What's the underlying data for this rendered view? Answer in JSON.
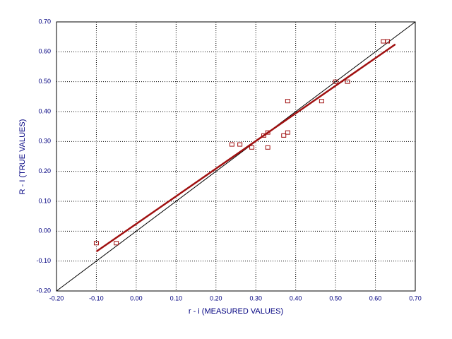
{
  "chart_data": {
    "type": "scatter",
    "xlabel": "r - i (MEASURED VALUES)",
    "ylabel": "R - I (TRUE VALUES)",
    "x": [
      -0.1,
      -0.05,
      0.24,
      0.26,
      0.29,
      0.32,
      0.33,
      0.33,
      0.37,
      0.38,
      0.38,
      0.465,
      0.5,
      0.53,
      0.62,
      0.63
    ],
    "values": [
      -0.04,
      -0.04,
      0.29,
      0.29,
      0.28,
      0.32,
      0.33,
      0.28,
      0.32,
      0.33,
      0.435,
      0.435,
      0.5,
      0.5,
      0.635,
      0.635
    ],
    "color": "#a01010",
    "marker": "square",
    "lines": [
      {
        "color": "#000000",
        "x": [
          -0.2,
          0.7
        ],
        "values": [
          -0.2,
          0.7
        ]
      },
      {
        "color": "#a01010",
        "x": [
          -0.1,
          0.65
        ],
        "values": [
          -0.068,
          0.625
        ]
      }
    ],
    "xlim": [
      -0.2,
      0.7
    ],
    "ylim": [
      -0.2,
      0.7
    ],
    "xticks": [
      {
        "value": -0.2,
        "label": "-0.20"
      },
      {
        "value": -0.1,
        "label": "-0.10"
      },
      {
        "value": 0,
        "label": "0.00"
      },
      {
        "value": 0.1,
        "label": "0.10"
      },
      {
        "value": 0.2,
        "label": "0.20"
      },
      {
        "value": 0.3,
        "label": "0.30"
      },
      {
        "value": 0.4,
        "label": "0.40"
      },
      {
        "value": 0.5,
        "label": "0.50"
      },
      {
        "value": 0.6,
        "label": "0.60"
      },
      {
        "value": 0.7,
        "label": "0.70"
      }
    ],
    "yticks": [
      {
        "value": -0.2,
        "label": "-0.20"
      },
      {
        "value": -0.1,
        "label": "-0.10"
      },
      {
        "value": 0,
        "label": "0.00"
      },
      {
        "value": 0.1,
        "label": "0.10"
      },
      {
        "value": 0.2,
        "label": "0.20"
      },
      {
        "value": 0.3,
        "label": "0.30"
      },
      {
        "value": 0.4,
        "label": "0.40"
      },
      {
        "value": 0.5,
        "label": "0.50"
      },
      {
        "value": 0.6,
        "label": "0.60"
      },
      {
        "value": 0.7,
        "label": "0.70"
      }
    ],
    "grid": true
  }
}
